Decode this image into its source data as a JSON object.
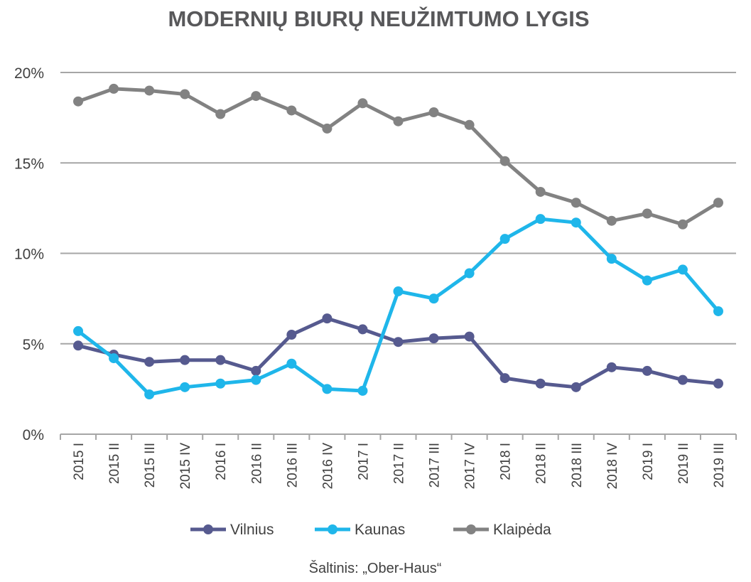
{
  "chart_data": {
    "type": "line",
    "title": "MODERNIŲ BIURŲ NEUŽIMTUMO LYGIS",
    "source": "Šaltinis: „Ober-Haus“",
    "categories": [
      "2015 I",
      "2015 II",
      "2015 III",
      "2015 IV",
      "2016 I",
      "2016 II",
      "2016 III",
      "2016 IV",
      "2017 I",
      "2017 II",
      "2017 III",
      "2017 IV",
      "2018 I",
      "2018 II",
      "2018 III",
      "2018 IV",
      "2019 I",
      "2019 II",
      "2019 III"
    ],
    "y_ticks": [
      "0%",
      "5%",
      "10%",
      "15%",
      "20%"
    ],
    "ylim": [
      0,
      20
    ],
    "grid": true,
    "legend_position": "bottom",
    "series": [
      {
        "name": "Vilnius",
        "color": "#565a8f",
        "values": [
          4.9,
          4.4,
          4.0,
          4.1,
          4.1,
          3.5,
          5.5,
          6.4,
          5.8,
          5.1,
          5.3,
          5.4,
          3.1,
          2.8,
          2.6,
          3.7,
          3.5,
          3.0,
          2.8
        ]
      },
      {
        "name": "Kaunas",
        "color": "#1fb6ea",
        "values": [
          5.7,
          4.2,
          2.2,
          2.6,
          2.8,
          3.0,
          3.9,
          2.5,
          2.4,
          7.9,
          7.5,
          8.9,
          10.8,
          11.9,
          11.7,
          9.7,
          8.5,
          9.1,
          6.8
        ]
      },
      {
        "name": "Klaipėda",
        "color": "#828282",
        "values": [
          18.4,
          19.1,
          19.0,
          18.8,
          17.7,
          18.7,
          17.9,
          16.9,
          18.3,
          17.3,
          17.8,
          17.1,
          15.1,
          13.4,
          12.8,
          11.8,
          12.2,
          11.6,
          12.8
        ]
      }
    ]
  }
}
